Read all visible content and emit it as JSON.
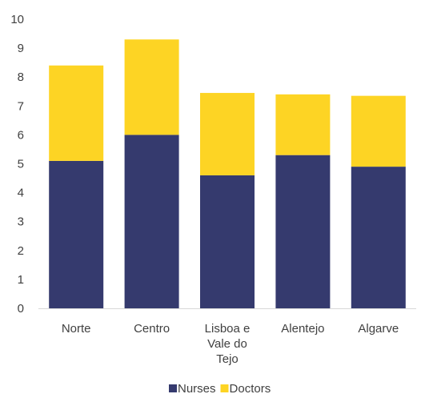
{
  "chart_data": {
    "type": "bar",
    "stacked": true,
    "categories": [
      [
        "Norte"
      ],
      [
        "Centro"
      ],
      [
        "Lisboa e",
        "Vale do",
        "Tejo"
      ],
      [
        "Alentejo"
      ],
      [
        "Algarve"
      ]
    ],
    "series": [
      {
        "name": "Nurses",
        "values": [
          5.1,
          6.0,
          4.6,
          5.3,
          4.9
        ],
        "color": "#353a6e"
      },
      {
        "name": "Doctors",
        "values": [
          3.3,
          3.3,
          2.85,
          2.1,
          2.45
        ],
        "color": "#fdd424"
      }
    ],
    "ylim": [
      0,
      10
    ],
    "yticks": [
      "0",
      "1",
      "2",
      "3",
      "4",
      "5",
      "6",
      "7",
      "8",
      "9",
      "10"
    ],
    "grid": false,
    "legend_position": "bottom-center",
    "title": "",
    "xlabel": "",
    "ylabel": ""
  }
}
